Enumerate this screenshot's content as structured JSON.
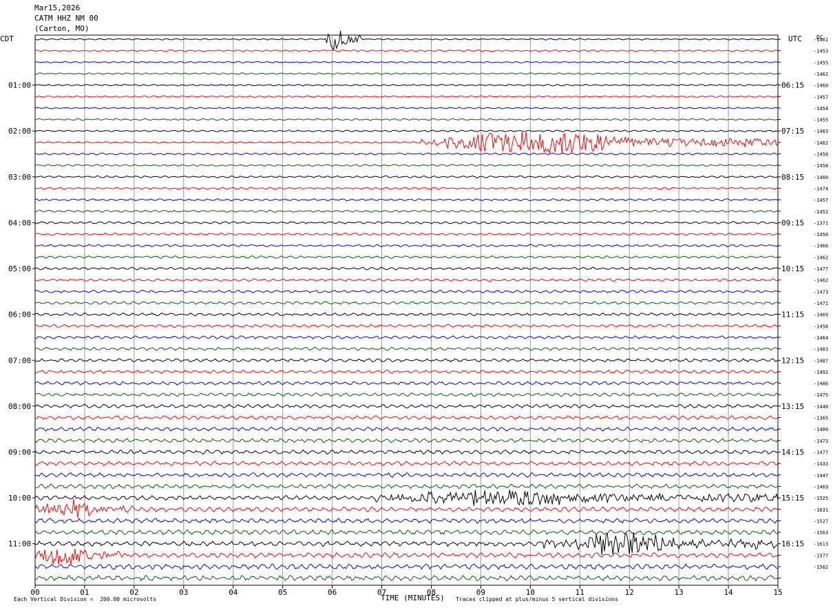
{
  "header": {
    "date": "Mar15,2026",
    "station": "CATM HHZ NM 00",
    "location": "(Carton, MO)"
  },
  "chart_data": {
    "type": "line",
    "subtype": "helicorder",
    "left_axis_label": "CDT",
    "right_axis_label": "UTC",
    "dc_label": "DC",
    "xlabel": "TIME (MINUTES)",
    "x_ticks": [
      "00",
      "01",
      "02",
      "03",
      "04",
      "05",
      "06",
      "07",
      "08",
      "09",
      "10",
      "11",
      "12",
      "13",
      "14",
      "15"
    ],
    "xlim": [
      0,
      15
    ],
    "row_minutes": 15,
    "row_count": 48,
    "trace_colors": [
      "#000000",
      "#ff0000",
      "#0000ff",
      "#006400"
    ],
    "left_time_labels": [
      "01:00",
      "02:00",
      "03:00",
      "04:00",
      "05:00",
      "06:00",
      "07:00",
      "08:00",
      "09:00",
      "10:00",
      "11:00"
    ],
    "right_time_labels": [
      "06:15",
      "07:15",
      "08:15",
      "09:15",
      "10:15",
      "11:15",
      "12:15",
      "13:15",
      "14:15",
      "15:15",
      "16:15"
    ],
    "dc_offsets": [
      "-1461",
      "-1453",
      "-1455",
      "-1462",
      "-1460",
      "-1457",
      "-1454",
      "-1455",
      "-1463",
      "-1462",
      "-1458",
      "-1458",
      "-1460",
      "-1474",
      "-1457",
      "-1452",
      "-1371",
      "-1456",
      "-1466",
      "-1462",
      "-1477",
      "-1462",
      "-1473",
      "-1471",
      "-1469",
      "-1458",
      "-1464",
      "-1483",
      "-1487",
      "-1492",
      "-1486",
      "-1475",
      "-1448",
      "-1365",
      "-1400",
      "-1473",
      "-1477",
      "-1433",
      "-1447",
      "-1469",
      "-1525",
      "-1631",
      "-1527",
      "-1563",
      "-1613",
      "-1577",
      "-1562"
    ],
    "scale_note": "Each Vertical Division =  200.00 microvolts",
    "clip_note": "Traces clipped at plus/minus 5 vertical divisions",
    "events": [
      {
        "row": 0,
        "minute_start": 5.85,
        "minute_end": 6.6,
        "strength": 1.0
      },
      {
        "row": 9,
        "minute_start": 7.8,
        "minute_end": 15.0,
        "strength": 1.0
      },
      {
        "row": 40,
        "minute_start": 6.8,
        "minute_end": 15.0,
        "strength": 0.7
      },
      {
        "row": 41,
        "minute_start": 0.0,
        "minute_end": 2.0,
        "strength": 0.8
      },
      {
        "row": 44,
        "minute_start": 10.2,
        "minute_end": 15.0,
        "strength": 1.0
      },
      {
        "row": 45,
        "minute_start": 0.0,
        "minute_end": 1.8,
        "strength": 1.0
      }
    ]
  }
}
